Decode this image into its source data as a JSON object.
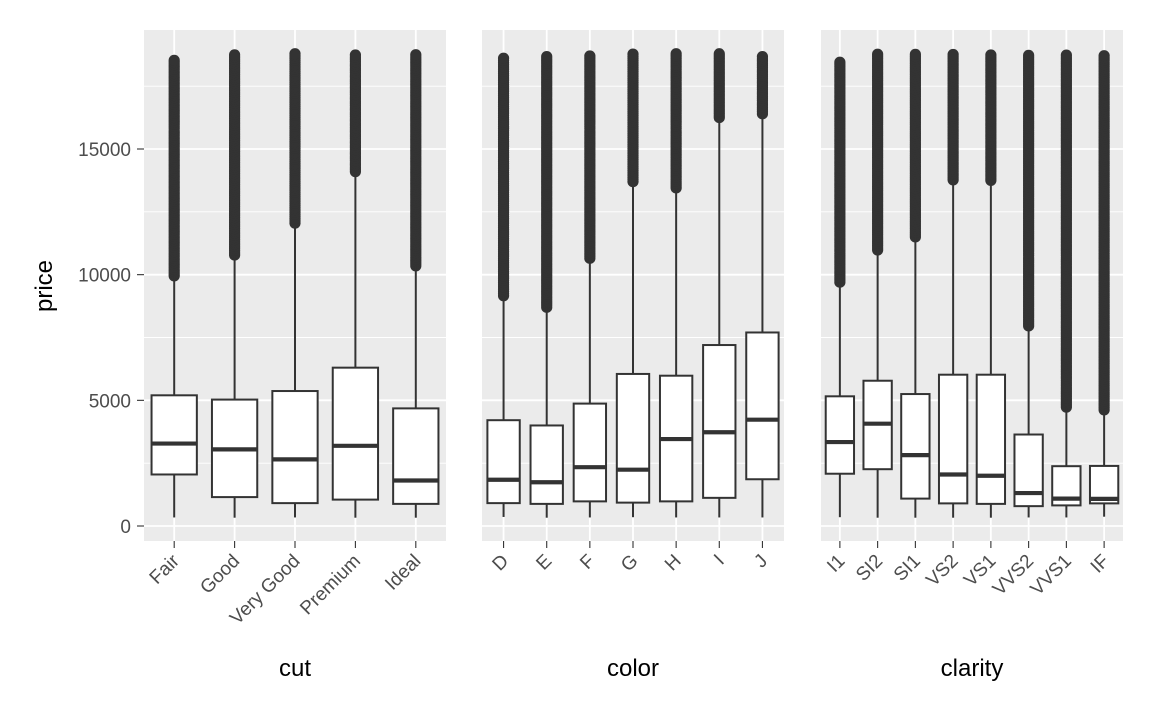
{
  "chart_data": {
    "type": "boxplot",
    "shared_y_axis": true,
    "ylabel": "price",
    "ylim": [
      -400,
      19800
    ],
    "yticks": [
      0,
      5000,
      10000,
      15000
    ],
    "grid": true,
    "panels": [
      {
        "xlabel": "cut",
        "categories": [
          "Fair",
          "Good",
          "Very Good",
          "Premium",
          "Ideal"
        ],
        "boxes": [
          {
            "q1": 2050,
            "median": 3280,
            "q3": 5200,
            "whisker_low": 340,
            "whisker_high": 9950,
            "outlier_low": 9950,
            "outlier_high": 18600
          },
          {
            "q1": 1150,
            "median": 3050,
            "q3": 5030,
            "whisker_low": 330,
            "whisker_high": 10780,
            "outlier_low": 10780,
            "outlier_high": 18800
          },
          {
            "q1": 910,
            "median": 2650,
            "q3": 5370,
            "whisker_low": 340,
            "whisker_high": 12050,
            "outlier_low": 12050,
            "outlier_high": 18800
          },
          {
            "q1": 1050,
            "median": 3190,
            "q3": 6300,
            "whisker_low": 330,
            "whisker_high": 14100,
            "outlier_low": 14100,
            "outlier_high": 18800
          },
          {
            "q1": 880,
            "median": 1810,
            "q3": 4680,
            "whisker_low": 330,
            "whisker_high": 10350,
            "outlier_low": 10350,
            "outlier_high": 18800
          }
        ]
      },
      {
        "xlabel": "color",
        "categories": [
          "D",
          "E",
          "F",
          "G",
          "H",
          "I",
          "J"
        ],
        "boxes": [
          {
            "q1": 910,
            "median": 1840,
            "q3": 4210,
            "whisker_low": 360,
            "whisker_high": 9160,
            "outlier_low": 9160,
            "outlier_high": 18700
          },
          {
            "q1": 880,
            "median": 1740,
            "q3": 4000,
            "whisker_low": 330,
            "whisker_high": 8700,
            "outlier_low": 8700,
            "outlier_high": 18750
          },
          {
            "q1": 980,
            "median": 2340,
            "q3": 4870,
            "whisker_low": 340,
            "whisker_high": 10650,
            "outlier_low": 10650,
            "outlier_high": 18790
          },
          {
            "q1": 930,
            "median": 2240,
            "q3": 6050,
            "whisker_low": 350,
            "whisker_high": 13700,
            "outlier_low": 13700,
            "outlier_high": 18820
          },
          {
            "q1": 980,
            "median": 3460,
            "q3": 5980,
            "whisker_low": 340,
            "whisker_high": 13450,
            "outlier_low": 13450,
            "outlier_high": 18800
          },
          {
            "q1": 1120,
            "median": 3730,
            "q3": 7200,
            "whisker_low": 340,
            "whisker_high": 16250,
            "outlier_low": 16250,
            "outlier_high": 18820
          },
          {
            "q1": 1860,
            "median": 4230,
            "q3": 7700,
            "whisker_low": 340,
            "whisker_high": 16400,
            "outlier_low": 16400,
            "outlier_high": 18710
          }
        ]
      },
      {
        "xlabel": "clarity",
        "categories": [
          "I1",
          "SI2",
          "SI1",
          "VS2",
          "VS1",
          "VVS2",
          "VVS1",
          "IF"
        ],
        "boxes": [
          {
            "q1": 2080,
            "median": 3340,
            "q3": 5160,
            "whisker_low": 350,
            "whisker_high": 9700,
            "outlier_low": 9700,
            "outlier_high": 18530
          },
          {
            "q1": 2260,
            "median": 4070,
            "q3": 5780,
            "whisker_low": 330,
            "whisker_high": 10980,
            "outlier_low": 10980,
            "outlier_high": 18800
          },
          {
            "q1": 1090,
            "median": 2820,
            "q3": 5250,
            "whisker_low": 330,
            "whisker_high": 11500,
            "outlier_low": 11500,
            "outlier_high": 18820
          },
          {
            "q1": 900,
            "median": 2050,
            "q3": 6020,
            "whisker_low": 330,
            "whisker_high": 13770,
            "outlier_low": 13770,
            "outlier_high": 18820
          },
          {
            "q1": 880,
            "median": 2000,
            "q3": 6020,
            "whisker_low": 330,
            "whisker_high": 13750,
            "outlier_low": 13750,
            "outlier_high": 18820
          },
          {
            "q1": 790,
            "median": 1310,
            "q3": 3640,
            "whisker_low": 340,
            "whisker_high": 7960,
            "outlier_low": 7960,
            "outlier_high": 18770
          },
          {
            "q1": 820,
            "median": 1090,
            "q3": 2380,
            "whisker_low": 340,
            "whisker_high": 4730,
            "outlier_low": 4730,
            "outlier_high": 18770
          },
          {
            "q1": 900,
            "median": 1080,
            "q3": 2390,
            "whisker_low": 370,
            "whisker_high": 4620,
            "outlier_low": 4620,
            "outlier_high": 18800
          }
        ]
      }
    ],
    "colors": {
      "panel_background": "#ebebeb",
      "grid": "#ffffff",
      "box_fill": "#ffffff",
      "box_stroke": "#333333",
      "outlier": "#333333",
      "tick_text": "#4d4d4d",
      "tick_mark": "#333333",
      "title_text": "#000000"
    }
  }
}
